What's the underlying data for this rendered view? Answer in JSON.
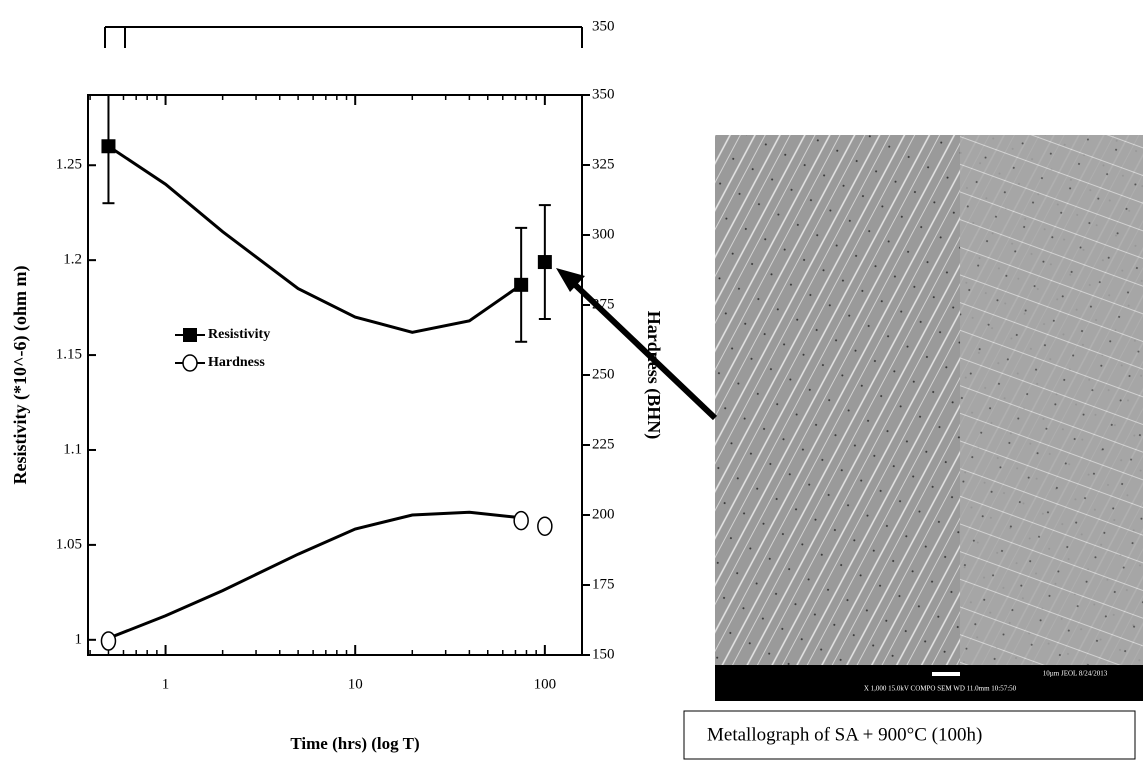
{
  "chart_data": {
    "type": "line",
    "x_label": "Time (hrs) (log T)",
    "y_label": "Resistivity (*10^-6) (ohm m)",
    "y2_label": "Hardness (BHN)",
    "x_log": true,
    "xlim": [
      0.39,
      157
    ],
    "xticks": [
      1,
      10,
      100
    ],
    "ylim": [
      0.992,
      1.287
    ],
    "yticks": [
      1.0,
      1.05,
      1.1,
      1.15,
      1.2,
      1.25
    ],
    "y2lim": [
      150,
      350
    ],
    "y2ticks": [
      150,
      175,
      200,
      225,
      250,
      275,
      300,
      325,
      350
    ],
    "clipped_axis_label": "350",
    "legend": "center-left",
    "series": [
      {
        "name": "Resistivity",
        "marker": "square",
        "color": "#000000",
        "x": [
          0.5,
          75,
          100
        ],
        "values": [
          1.26,
          1.187,
          1.199
        ],
        "errors": [
          0.03,
          0.03,
          0.03
        ],
        "fit": {
          "x": [
            0.5,
            1,
            2,
            5,
            10,
            20,
            40,
            75
          ],
          "values": [
            1.26,
            1.24,
            1.215,
            1.185,
            1.17,
            1.162,
            1.168,
            1.187
          ]
        }
      },
      {
        "name": "Hardness",
        "marker": "circle",
        "color": "#000000",
        "axis": "y2",
        "x": [
          0.5,
          75,
          100
        ],
        "values": [
          155,
          198,
          196
        ],
        "fit": {
          "x": [
            0.5,
            1,
            2,
            5,
            10,
            20,
            40,
            75
          ],
          "values": [
            156,
            164,
            173,
            186,
            195,
            200,
            201,
            199
          ]
        }
      }
    ]
  },
  "figure": {
    "caption": "Metallograph of SA + 900°C (100h)",
    "micrograph_info_1": "10µm JEOL 8/24/2013",
    "micrograph_info_2": "X 1,000 15.0kV COMPO SEM WD 11.0mm 10:57:50"
  }
}
